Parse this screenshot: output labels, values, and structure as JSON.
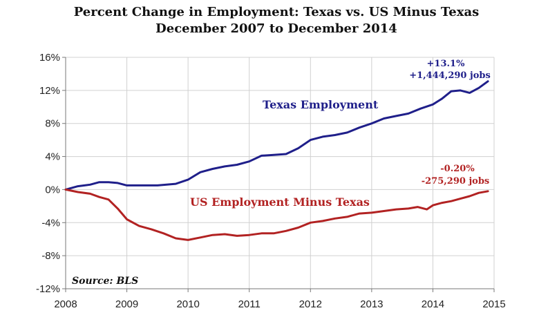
{
  "chart_data": {
    "type": "line",
    "title": "Percent Change in Employment: Texas vs. US Minus Texas",
    "subtitle": "December 2007 to December 2014",
    "xlabel": "",
    "ylabel": "",
    "xlim": [
      2008,
      2015
    ],
    "ylim": [
      -12,
      16
    ],
    "x_ticks": [
      "2008",
      "2009",
      "2010",
      "2011",
      "2012",
      "2013",
      "2014",
      "2015"
    ],
    "y_ticks": [
      "16%",
      "12%",
      "8%",
      "4%",
      "0%",
      "-4%",
      "-8%",
      "-12%"
    ],
    "grid": true,
    "source": "Source: BLS",
    "series": [
      {
        "name": "Texas Employment",
        "color": "#1f1f8a",
        "x": [
          2008.0,
          2008.2,
          2008.4,
          2008.55,
          2008.7,
          2008.85,
          2009.0,
          2009.2,
          2009.5,
          2009.8,
          2010.0,
          2010.2,
          2010.4,
          2010.6,
          2010.8,
          2011.0,
          2011.2,
          2011.4,
          2011.6,
          2011.8,
          2012.0,
          2012.2,
          2012.4,
          2012.6,
          2012.8,
          2013.0,
          2013.2,
          2013.4,
          2013.6,
          2013.8,
          2014.0,
          2014.15,
          2014.3,
          2014.45,
          2014.6,
          2014.75,
          2014.9
        ],
        "y": [
          0.0,
          0.4,
          0.6,
          0.9,
          0.9,
          0.8,
          0.5,
          0.5,
          0.5,
          0.7,
          1.2,
          2.1,
          2.5,
          2.8,
          3.0,
          3.4,
          4.1,
          4.2,
          4.3,
          5.0,
          6.0,
          6.4,
          6.6,
          6.9,
          7.5,
          8.0,
          8.6,
          8.9,
          9.2,
          9.8,
          10.3,
          11.0,
          11.9,
          12.0,
          11.7,
          12.3,
          13.1
        ]
      },
      {
        "name": "US Employment Minus Texas",
        "color": "#b22222",
        "x": [
          2008.0,
          2008.2,
          2008.4,
          2008.55,
          2008.7,
          2008.85,
          2009.0,
          2009.2,
          2009.4,
          2009.6,
          2009.8,
          2010.0,
          2010.2,
          2010.4,
          2010.6,
          2010.8,
          2011.0,
          2011.2,
          2011.4,
          2011.6,
          2011.8,
          2012.0,
          2012.2,
          2012.4,
          2012.6,
          2012.8,
          2013.0,
          2013.2,
          2013.4,
          2013.6,
          2013.75,
          2013.9,
          2014.0,
          2014.15,
          2014.3,
          2014.45,
          2014.6,
          2014.75,
          2014.9
        ],
        "y": [
          0.0,
          -0.3,
          -0.5,
          -0.9,
          -1.2,
          -2.3,
          -3.6,
          -4.4,
          -4.8,
          -5.3,
          -5.9,
          -6.1,
          -5.8,
          -5.5,
          -5.4,
          -5.6,
          -5.5,
          -5.3,
          -5.3,
          -5.0,
          -4.6,
          -4.0,
          -3.8,
          -3.5,
          -3.3,
          -2.9,
          -2.8,
          -2.6,
          -2.4,
          -2.3,
          -2.1,
          -2.4,
          -1.9,
          -1.6,
          -1.4,
          -1.1,
          -0.8,
          -0.4,
          -0.2
        ]
      }
    ],
    "annotations": [
      {
        "series": "Texas Employment",
        "lines": [
          "+13.1%",
          "+1,444,290 jobs"
        ]
      },
      {
        "series": "US Employment Minus Texas",
        "lines": [
          "-0.20%",
          "-275,290 jobs"
        ]
      }
    ]
  }
}
